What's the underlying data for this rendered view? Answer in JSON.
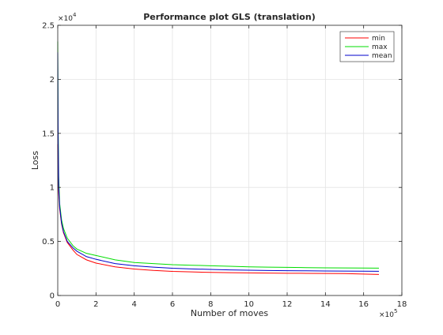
{
  "chart_data": {
    "type": "line",
    "title": "Performance plot GLS (translation)",
    "xlabel": "Number of moves",
    "ylabel": "Loss",
    "xlim": [
      0,
      18
    ],
    "ylim": [
      0,
      2.5
    ],
    "x_multiplier": {
      "base": "×10",
      "exp": "5"
    },
    "y_multiplier": {
      "base": "×10",
      "exp": "4"
    },
    "xticks": [
      "0",
      "2",
      "4",
      "6",
      "8",
      "10",
      "12",
      "14",
      "16",
      "18"
    ],
    "yticks": [
      "0",
      "0.5",
      "1",
      "1.5",
      "2",
      "2.5"
    ],
    "grid": true,
    "legend_position": "top-right",
    "series": [
      {
        "name": "min",
        "color": "#ff0000",
        "x": [
          0,
          0.05,
          0.1,
          0.2,
          0.3,
          0.5,
          0.8,
          1,
          1.5,
          2,
          3,
          4,
          5,
          6,
          7,
          8,
          9,
          10,
          11,
          12,
          13,
          14,
          15,
          16,
          16.8
        ],
        "y": [
          1.4,
          0.95,
          0.8,
          0.66,
          0.58,
          0.49,
          0.42,
          0.38,
          0.33,
          0.3,
          0.265,
          0.245,
          0.232,
          0.223,
          0.218,
          0.214,
          0.211,
          0.209,
          0.207,
          0.206,
          0.205,
          0.204,
          0.203,
          0.198,
          0.195
        ]
      },
      {
        "name": "max",
        "color": "#00dd00",
        "x": [
          0,
          0.02,
          0.05,
          0.1,
          0.2,
          0.3,
          0.5,
          0.8,
          1,
          1.5,
          2,
          3,
          4,
          5,
          6,
          7,
          8,
          9,
          10,
          11,
          12,
          13,
          14,
          15,
          16,
          16.8
        ],
        "y": [
          2.35,
          1.6,
          1.1,
          0.85,
          0.7,
          0.62,
          0.53,
          0.46,
          0.43,
          0.39,
          0.37,
          0.33,
          0.305,
          0.295,
          0.285,
          0.28,
          0.275,
          0.27,
          0.265,
          0.262,
          0.26,
          0.258,
          0.256,
          0.255,
          0.254,
          0.253
        ]
      },
      {
        "name": "mean",
        "color": "#0000cc",
        "x": [
          0,
          0.02,
          0.05,
          0.1,
          0.2,
          0.3,
          0.5,
          0.8,
          1,
          1.5,
          2,
          3,
          4,
          5,
          6,
          7,
          8,
          9,
          10,
          11,
          12,
          13,
          14,
          15,
          16,
          16.8
        ],
        "y": [
          2.25,
          1.5,
          1.0,
          0.82,
          0.67,
          0.59,
          0.5,
          0.44,
          0.41,
          0.36,
          0.335,
          0.295,
          0.275,
          0.262,
          0.252,
          0.246,
          0.241,
          0.237,
          0.234,
          0.231,
          0.229,
          0.228,
          0.227,
          0.226,
          0.225,
          0.224
        ]
      }
    ]
  }
}
